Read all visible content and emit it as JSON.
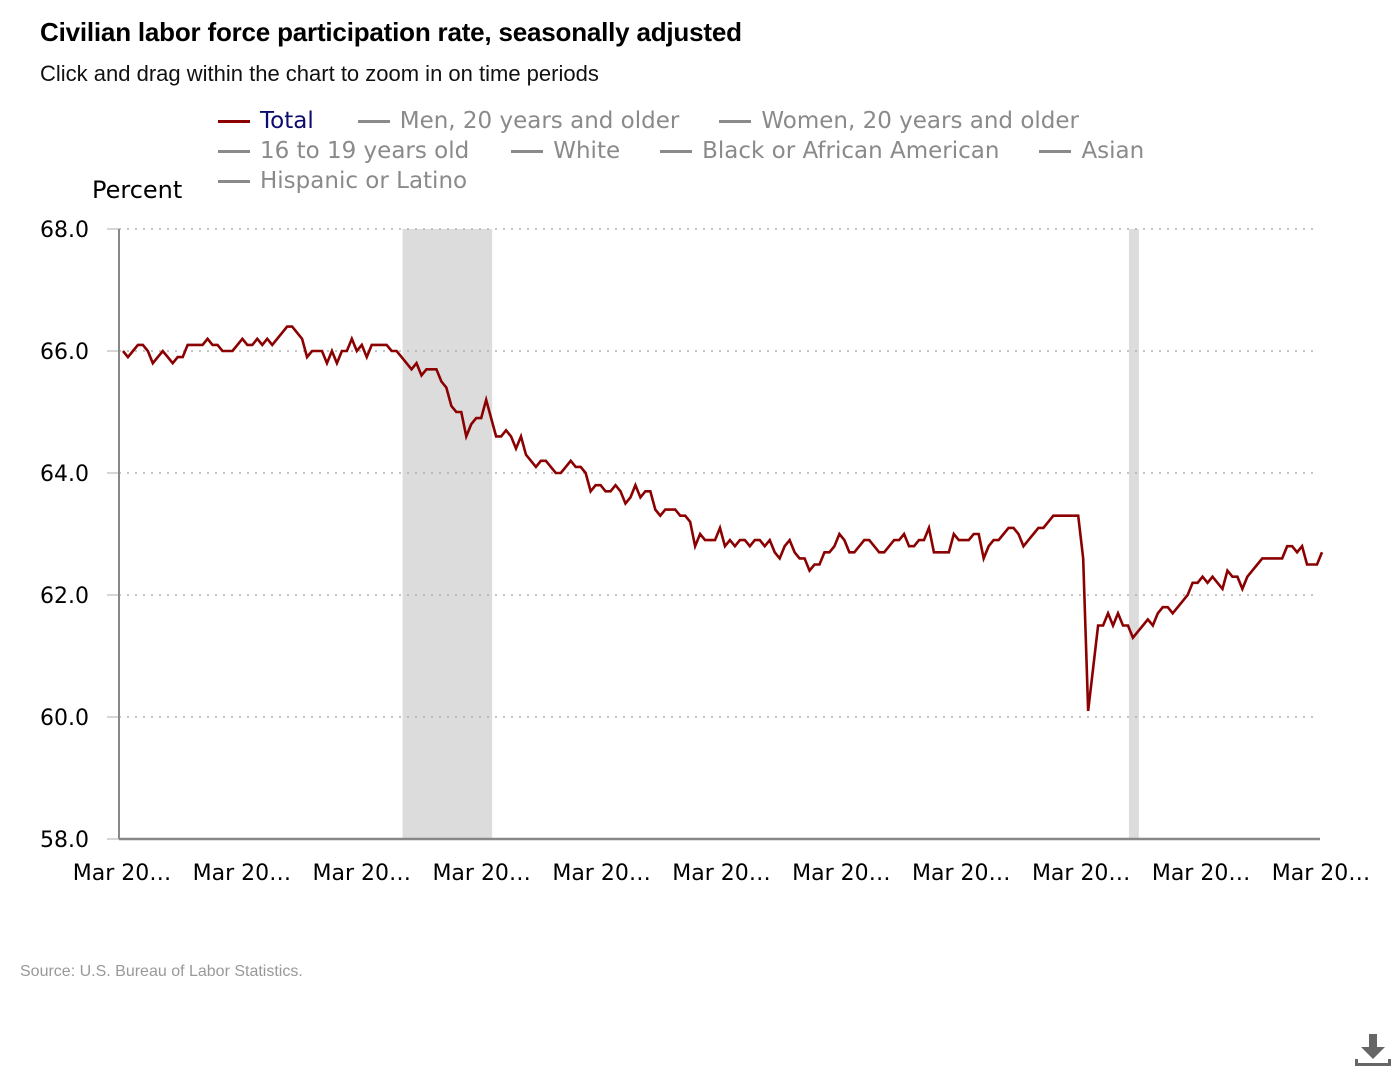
{
  "header": {
    "title": "Civilian labor force participation rate, seasonally adjusted",
    "subtitle": "Click and drag within the chart to zoom in on time periods"
  },
  "legend": {
    "rows": [
      [
        {
          "label": "Total",
          "active": true
        },
        {
          "label": "Men, 20 years and older",
          "active": false
        },
        {
          "label": "Women, 20 years and older",
          "active": false
        }
      ],
      [
        {
          "label": "16 to 19 years old",
          "active": false
        },
        {
          "label": "White",
          "active": false
        },
        {
          "label": "Black or African American",
          "active": false
        },
        {
          "label": "Asian",
          "active": false
        }
      ],
      [
        {
          "label": "Hispanic or Latino",
          "active": false
        }
      ]
    ]
  },
  "footer": {
    "source": "Source: U.S. Bureau of Labor Statistics.",
    "download_icon": "download-icon"
  },
  "colors": {
    "series": "#8b0000",
    "legend_active_text": "#0c0c6e",
    "legend_inactive": "#8a8a8a",
    "recession_shade": "#dcdcdc",
    "grid": "#b0b0b0",
    "axis": "#888888"
  },
  "chart_data": {
    "type": "line",
    "title": "Civilian labor force participation rate, seasonally adjusted",
    "subtitle": "Click and drag within the chart to zoom in on time periods",
    "xlabel": "",
    "ylabel": "Percent",
    "ylim": [
      58.0,
      68.0
    ],
    "yticks": [
      "58.0",
      "60.0",
      "62.0",
      "64.0",
      "66.0",
      "68.0"
    ],
    "xticks": [
      "Mar 20…",
      "Mar 20…",
      "Mar 20…",
      "Mar 20…",
      "Mar 20…",
      "Mar 20…",
      "Mar 20…",
      "Mar 20…",
      "Mar 20…",
      "Mar 20…",
      "Mar 20…"
    ],
    "x_range_months": [
      0,
      241
    ],
    "grid": "horizontal-dotted",
    "legend_position": "top",
    "recession_shading_months": [
      [
        57,
        75
      ],
      [
        203,
        205
      ]
    ],
    "series": [
      {
        "name": "Total",
        "values": [
          66.0,
          65.9,
          66.0,
          66.1,
          66.1,
          66.0,
          65.8,
          65.9,
          66.0,
          65.9,
          65.8,
          65.9,
          65.9,
          66.1,
          66.1,
          66.1,
          66.1,
          66.2,
          66.1,
          66.1,
          66.0,
          66.0,
          66.0,
          66.1,
          66.2,
          66.1,
          66.1,
          66.2,
          66.1,
          66.2,
          66.1,
          66.2,
          66.3,
          66.4,
          66.4,
          66.3,
          66.2,
          65.9,
          66.0,
          66.0,
          66.0,
          65.8,
          66.0,
          65.8,
          66.0,
          66.0,
          66.2,
          66.0,
          66.1,
          65.9,
          66.1,
          66.1,
          66.1,
          66.1,
          66.0,
          66.0,
          65.9,
          65.8,
          65.7,
          65.8,
          65.6,
          65.7,
          65.7,
          65.7,
          65.5,
          65.4,
          65.1,
          65.0,
          65.0,
          64.6,
          64.8,
          64.9,
          64.9,
          65.2,
          64.9,
          64.6,
          64.6,
          64.7,
          64.6,
          64.4,
          64.6,
          64.3,
          64.2,
          64.1,
          64.2,
          64.2,
          64.1,
          64.0,
          64.0,
          64.1,
          64.2,
          64.1,
          64.1,
          64.0,
          63.7,
          63.8,
          63.8,
          63.7,
          63.7,
          63.8,
          63.7,
          63.5,
          63.6,
          63.8,
          63.6,
          63.7,
          63.7,
          63.4,
          63.3,
          63.4,
          63.4,
          63.4,
          63.3,
          63.3,
          63.2,
          62.8,
          63.0,
          62.9,
          62.9,
          62.9,
          63.1,
          62.8,
          62.9,
          62.8,
          62.9,
          62.9,
          62.8,
          62.9,
          62.9,
          62.8,
          62.9,
          62.7,
          62.6,
          62.8,
          62.9,
          62.7,
          62.6,
          62.6,
          62.4,
          62.5,
          62.5,
          62.7,
          62.7,
          62.8,
          63.0,
          62.9,
          62.7,
          62.7,
          62.8,
          62.9,
          62.9,
          62.8,
          62.7,
          62.7,
          62.8,
          62.9,
          62.9,
          63.0,
          62.8,
          62.8,
          62.9,
          62.9,
          63.1,
          62.7,
          62.7,
          62.7,
          62.7,
          63.0,
          62.9,
          62.9,
          62.9,
          63.0,
          63.0,
          62.6,
          62.8,
          62.9,
          62.9,
          63.0,
          63.1,
          63.1,
          63.0,
          62.8,
          62.9,
          63.0,
          63.1,
          63.1,
          63.2,
          63.3,
          63.3,
          63.3,
          63.3,
          63.3,
          63.3,
          62.6,
          60.1,
          60.8,
          61.5,
          61.5,
          61.7,
          61.5,
          61.7,
          61.5,
          61.5,
          61.3,
          61.4,
          61.5,
          61.6,
          61.5,
          61.7,
          61.8,
          61.8,
          61.7,
          61.8,
          61.9,
          62.0,
          62.2,
          62.2,
          62.3,
          62.2,
          62.3,
          62.2,
          62.1,
          62.4,
          62.3,
          62.3,
          62.1,
          62.3,
          62.4,
          62.5,
          62.6,
          62.6,
          62.6,
          62.6,
          62.6,
          62.8,
          62.8,
          62.7,
          62.8,
          62.5,
          62.5,
          62.5,
          62.7
        ]
      }
    ]
  }
}
